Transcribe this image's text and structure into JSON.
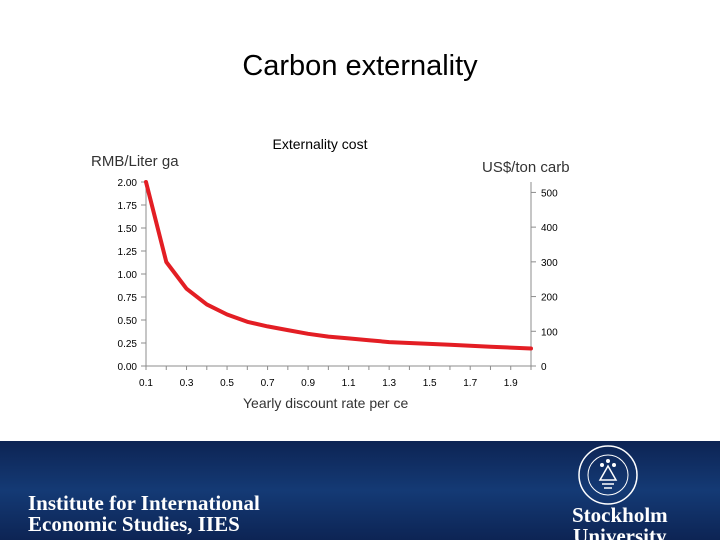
{
  "slide": {
    "title": "Carbon externality"
  },
  "chart_data": {
    "type": "line",
    "title": "Externality cost",
    "ylabel_left": "RMB/Liter ga",
    "ylabel_right": "US$/ton carb",
    "xlabel": "Yearly discount rate per ce",
    "x_ticks": [
      "0.1",
      "0.3",
      "0.5",
      "0.7",
      "0.9",
      "1.1",
      "1.3",
      "1.5",
      "1.7",
      "1.9"
    ],
    "y_left_ticks": [
      "0.00",
      "0.25",
      "0.50",
      "0.75",
      "1.00",
      "1.25",
      "1.50",
      "1.75",
      "2.00"
    ],
    "y_right_ticks": [
      "0",
      "100",
      "200",
      "300",
      "400",
      "500"
    ],
    "ylim_left": [
      0,
      2.0
    ],
    "ylim_right": [
      0,
      530
    ],
    "xlim": [
      0.1,
      2.0
    ],
    "grid": false,
    "line_color": "#e31e24",
    "series": [
      {
        "x": [
          0.1,
          0.2,
          0.3,
          0.4,
          0.5,
          0.6,
          0.7,
          0.8,
          0.9,
          1.0,
          1.1,
          1.2,
          1.3,
          1.4,
          1.5,
          1.6,
          1.7,
          1.8,
          1.9,
          2.0
        ],
        "y": [
          2.0,
          1.13,
          0.84,
          0.67,
          0.56,
          0.48,
          0.43,
          0.39,
          0.35,
          0.32,
          0.3,
          0.28,
          0.26,
          0.25,
          0.24,
          0.23,
          0.22,
          0.21,
          0.2,
          0.19
        ]
      }
    ]
  },
  "footer": {
    "left_line1": "Institute for International",
    "left_line2": "Economic Studies, IIES",
    "right_line1": "Stockholm",
    "right_line2": "University",
    "background": "#0d2454"
  }
}
